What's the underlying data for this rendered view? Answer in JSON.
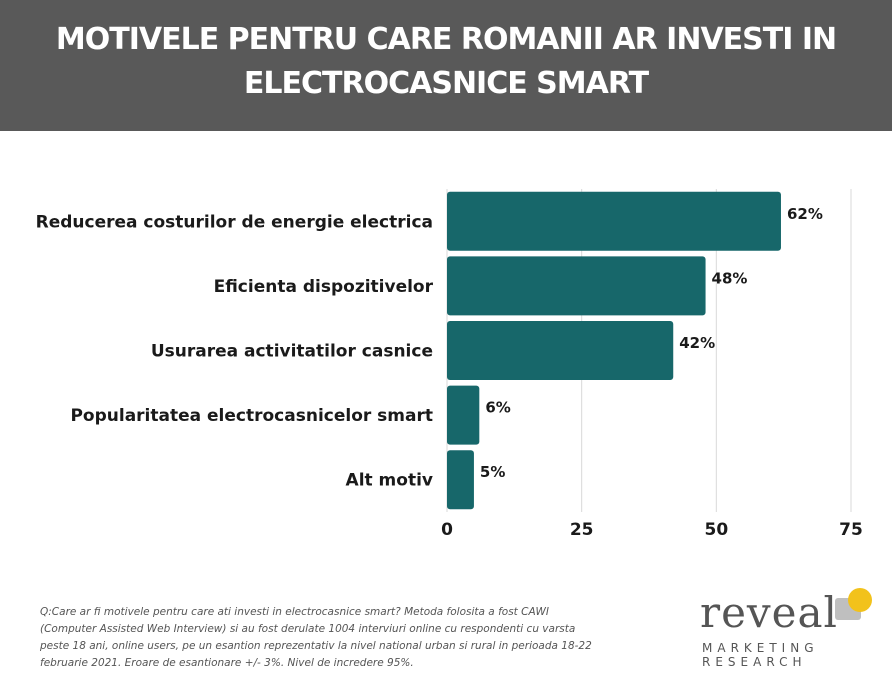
{
  "header": {
    "title_line1": "MOTIVELE PENTRU CARE ROMANII AR INVESTI IN",
    "title_line2": "ELECTROCASNICE SMART"
  },
  "chart_data": {
    "type": "bar",
    "orientation": "horizontal",
    "categories": [
      "Reducerea costurilor de energie electrica",
      "Eficienta dispozitivelor",
      "Usurarea activitatilor casnice",
      "Popularitatea electrocasnicelor smart",
      "Alt motiv"
    ],
    "values": [
      62,
      48,
      42,
      6,
      5
    ],
    "value_labels": [
      "62%",
      "48%",
      "42%",
      "6%",
      "5%"
    ],
    "xticks": [
      0,
      25,
      50,
      75
    ],
    "xlim": [
      0,
      75
    ],
    "grid": "vertical",
    "bar_color": "#17676a"
  },
  "footnote": "Q:Care ar fi motivele pentru care ati investi in electrocasnice smart? Metoda folosita a fost CAWI (Computer Assisted Web Interview) si au fost derulate 1004 interviuri online cu respondenti cu varsta peste 18 ani, online users, pe un esantion reprezentativ la nivel national urban si rural in perioada 18-22 februarie 2021. Eroare de esantionare +/- 3%. Nivel de incredere 95%.",
  "logo": {
    "word": "reveal",
    "line1": "MARKETING",
    "line2": "RESEARCH",
    "accent_color": "#f2c21b",
    "mark_color": "#bfbfbf"
  }
}
